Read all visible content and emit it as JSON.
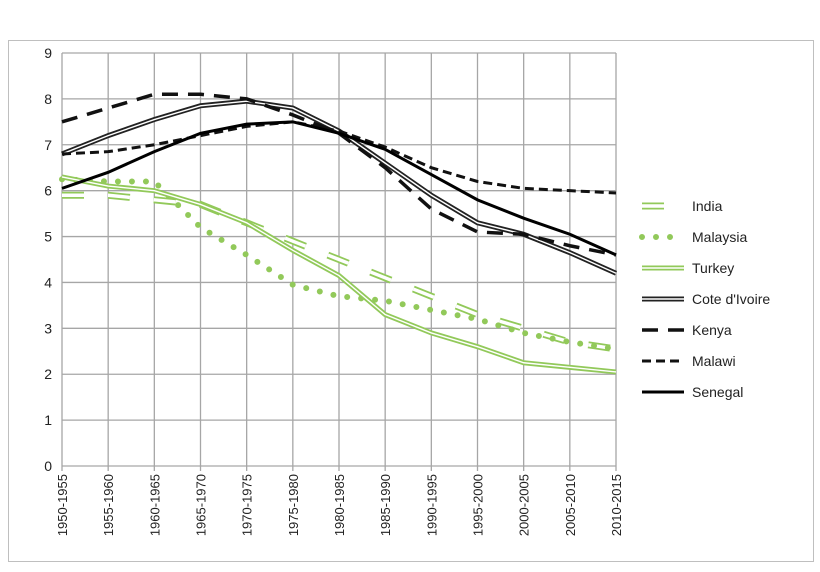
{
  "chart_data": {
    "type": "line",
    "title": "",
    "xlabel": "",
    "ylabel": "",
    "ylim": [
      0,
      9
    ],
    "yticks": [
      "0",
      "1",
      "2",
      "3",
      "4",
      "5",
      "6",
      "7",
      "8",
      "9"
    ],
    "grid": true,
    "legend": "right",
    "categories": [
      "1950-1955",
      "1955-1960",
      "1960-1965",
      "1965-1970",
      "1970-1975",
      "1975-1980",
      "1980-1985",
      "1985-1990",
      "1990-1995",
      "1995-2000",
      "2000-2005",
      "2005-2010",
      "2010-2015"
    ],
    "series": [
      {
        "name": "India",
        "color": "#92c95a",
        "style": "double-dash",
        "values": [
          5.9,
          5.9,
          5.8,
          5.7,
          5.3,
          4.9,
          4.5,
          4.1,
          3.7,
          3.3,
          3.0,
          2.7,
          2.55
        ]
      },
      {
        "name": "Malaysia",
        "color": "#92c95a",
        "style": "dots",
        "values": [
          6.25,
          6.2,
          6.2,
          5.2,
          4.6,
          3.95,
          3.7,
          3.6,
          3.4,
          3.2,
          2.9,
          2.7,
          2.55
        ]
      },
      {
        "name": "Turkey",
        "color": "#92c95a",
        "style": "double",
        "values": [
          6.3,
          6.1,
          6.0,
          5.7,
          5.3,
          4.7,
          4.15,
          3.3,
          2.9,
          2.6,
          2.25,
          2.15,
          2.05
        ]
      },
      {
        "name": "Cote d'Ivoire",
        "color": "#222222",
        "style": "double",
        "values": [
          6.8,
          7.2,
          7.55,
          7.85,
          7.95,
          7.8,
          7.3,
          6.6,
          5.9,
          5.3,
          5.05,
          4.65,
          4.2
        ]
      },
      {
        "name": "Kenya",
        "color": "#111111",
        "style": "long-dash",
        "values": [
          7.5,
          7.8,
          8.1,
          8.1,
          8.0,
          7.65,
          7.25,
          6.5,
          5.6,
          5.1,
          5.05,
          4.8,
          4.6
        ]
      },
      {
        "name": "Malawi",
        "color": "#111111",
        "style": "short-dash",
        "values": [
          6.8,
          6.85,
          7.0,
          7.2,
          7.4,
          7.5,
          7.3,
          6.95,
          6.5,
          6.2,
          6.05,
          6.0,
          5.95
        ]
      },
      {
        "name": "Senegal",
        "color": "#000000",
        "style": "solid",
        "values": [
          6.05,
          6.4,
          6.85,
          7.25,
          7.45,
          7.5,
          7.25,
          6.9,
          6.35,
          5.8,
          5.4,
          5.05,
          4.6
        ]
      }
    ]
  }
}
